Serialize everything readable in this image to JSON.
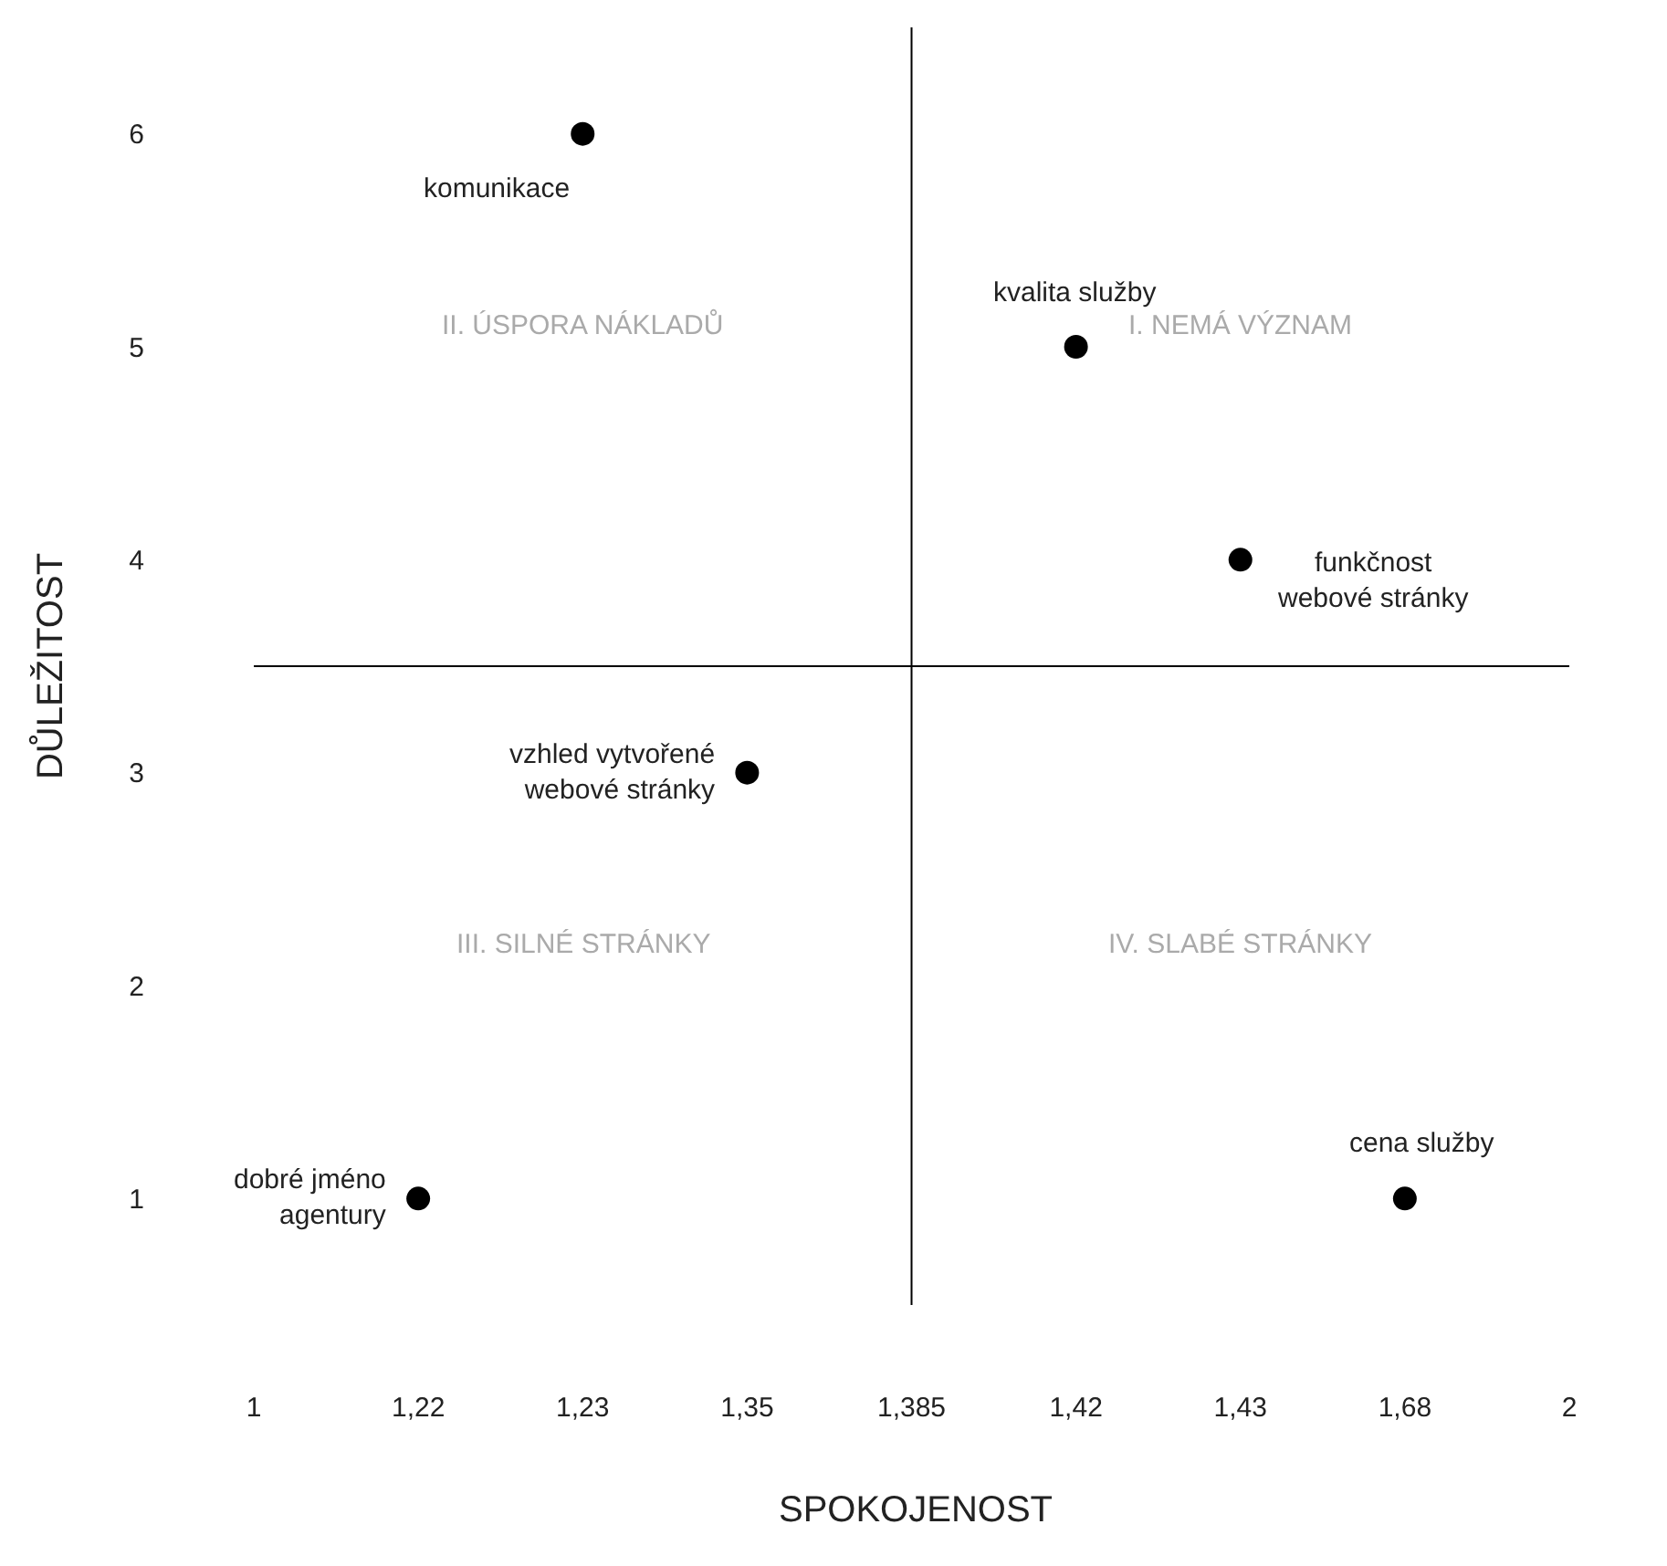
{
  "chart_data": {
    "type": "scatter",
    "xlabel": "SPOKOJENOST",
    "ylabel": "DŮLEŽITOST",
    "categories": [
      "1",
      "1,22",
      "1,23",
      "1,35",
      "1,385",
      "1,42",
      "1,43",
      "1,68",
      "2"
    ],
    "series": [
      {
        "color": "#000000",
        "values": [
          null,
          1,
          6,
          3,
          null,
          5,
          4,
          1,
          null
        ]
      }
    ],
    "marker": "circle",
    "ylim": [
      0.5,
      6.5
    ],
    "yticks": [
      1,
      2,
      3,
      4,
      5,
      6
    ],
    "ref_lines": [
      {
        "axis": "x",
        "value": "1,385",
        "color": "#000000"
      },
      {
        "axis": "y",
        "value": 3.5,
        "color": "#000000"
      }
    ],
    "annotations": [
      "II. ÚSPORA NÁKLADŮ",
      "I. NEMÁ VÝZNAM",
      "III. SILNÉ STRÁNKY",
      "IV. SLABÉ STRÁNKY",
      {
        "text": "komunikace",
        "x": "1,23",
        "y": 6
      },
      {
        "text": "kvalita služby",
        "x": "1,42",
        "y": 5
      },
      {
        "text": "funkčnost\nwebové stránky",
        "x": "1,43",
        "y": 4
      },
      {
        "text": "vzhled vytvořené\nwebové stránky",
        "x": "1,35",
        "y": 3
      },
      {
        "text": "dobré jméno\nagentury",
        "x": "1,22",
        "y": 1
      },
      {
        "text": "cena služby",
        "x": "1,68",
        "y": 1
      }
    ]
  }
}
